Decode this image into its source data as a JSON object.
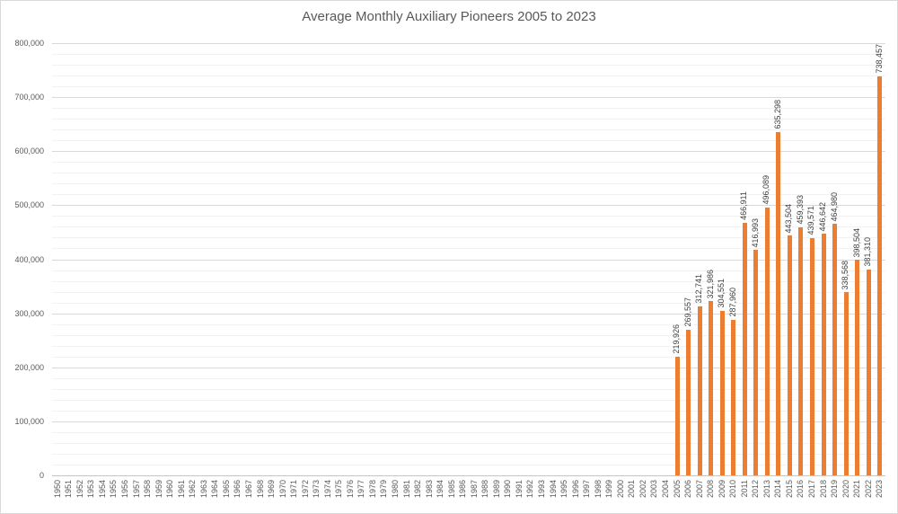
{
  "chart_data": {
    "type": "bar",
    "title": "Average Monthly Auxiliary Pioneers 2005 to 2023",
    "xlabel": "",
    "ylabel": "",
    "ylim": [
      0,
      800000
    ],
    "y_major_unit": 100000,
    "y_minor_unit": 20000,
    "grid": true,
    "legend": "none",
    "bar_color": "#ed7d31",
    "major_gridline_color": "#d9d9d9",
    "minor_gridline_color": "#f2f2f2",
    "y_tick_labels": [
      "0",
      "100,000",
      "200,000",
      "300,000",
      "400,000",
      "500,000",
      "600,000",
      "700,000",
      "800,000"
    ],
    "categories": [
      "1950",
      "1951",
      "1952",
      "1953",
      "1954",
      "1955",
      "1956",
      "1957",
      "1958",
      "1959",
      "1960",
      "1961",
      "1962",
      "1963",
      "1964",
      "1965",
      "1966",
      "1967",
      "1968",
      "1969",
      "1970",
      "1971",
      "1972",
      "1973",
      "1974",
      "1975",
      "1976",
      "1977",
      "1978",
      "1979",
      "1980",
      "1981",
      "1982",
      "1983",
      "1984",
      "1985",
      "1986",
      "1987",
      "1988",
      "1989",
      "1990",
      "1991",
      "1992",
      "1993",
      "1994",
      "1995",
      "1996",
      "1997",
      "1998",
      "1999",
      "2000",
      "2001",
      "2002",
      "2003",
      "2004",
      "2005",
      "2006",
      "2007",
      "2008",
      "2009",
      "2010",
      "2011",
      "2012",
      "2013",
      "2014",
      "2015",
      "2016",
      "2017",
      "2018",
      "2019",
      "2020",
      "2021",
      "2022",
      "2023"
    ],
    "values": [
      null,
      null,
      null,
      null,
      null,
      null,
      null,
      null,
      null,
      null,
      null,
      null,
      null,
      null,
      null,
      null,
      null,
      null,
      null,
      null,
      null,
      null,
      null,
      null,
      null,
      null,
      null,
      null,
      null,
      null,
      null,
      null,
      null,
      null,
      null,
      null,
      null,
      null,
      null,
      null,
      null,
      null,
      null,
      null,
      null,
      null,
      null,
      null,
      null,
      null,
      null,
      null,
      null,
      null,
      null,
      219926,
      269557,
      312741,
      321986,
      304551,
      287960,
      466911,
      416993,
      496089,
      635298,
      443504,
      459393,
      439571,
      446642,
      464980,
      338568,
      398504,
      381310,
      738457
    ],
    "data_labels": [
      "219,926",
      "269,557",
      "312,741",
      "321,986",
      "304,551",
      "287,960",
      "466,911",
      "416,993",
      "496,089",
      "635,298",
      "443,504",
      "459,393",
      "439,571",
      "446,642",
      "464,980",
      "338,568",
      "398,504",
      "381,310",
      "738,457"
    ]
  }
}
